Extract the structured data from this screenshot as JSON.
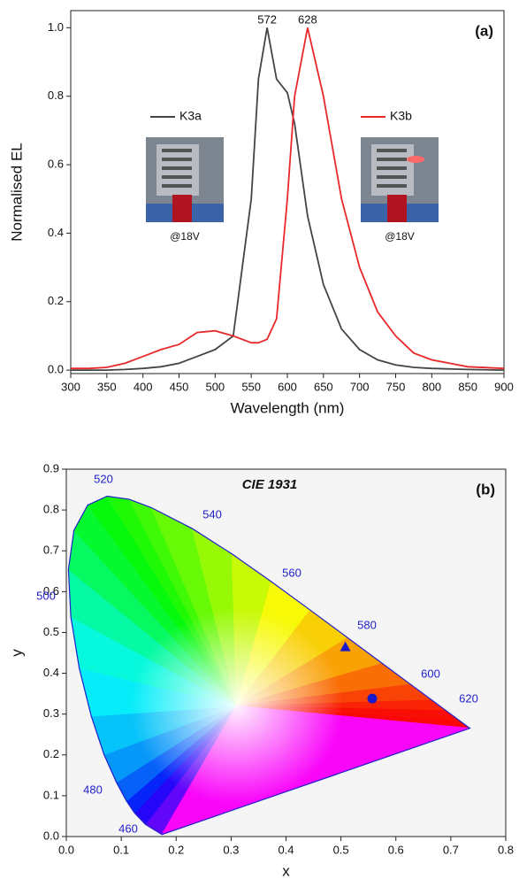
{
  "chart_data": [
    {
      "type": "line",
      "panel_label": "(a)",
      "xlabel": "Wavelength (nm)",
      "ylabel": "Normalised EL",
      "x": [
        300,
        325,
        350,
        375,
        400,
        425,
        450,
        475,
        500,
        525,
        550,
        560,
        572,
        585,
        600,
        610,
        628,
        650,
        675,
        700,
        725,
        750,
        775,
        800,
        850,
        900
      ],
      "series": [
        {
          "name": "K3a",
          "color": "#444444",
          "values": [
            0,
            0,
            0,
            0.002,
            0.005,
            0.01,
            0.02,
            0.04,
            0.06,
            0.1,
            0.5,
            0.85,
            1.0,
            0.85,
            0.81,
            0.72,
            0.45,
            0.25,
            0.12,
            0.06,
            0.03,
            0.015,
            0.008,
            0.005,
            0.002,
            0
          ]
        },
        {
          "name": "K3b",
          "color": "#e8282b",
          "values": [
            0.005,
            0.005,
            0.008,
            0.02,
            0.04,
            0.06,
            0.075,
            0.11,
            0.115,
            0.1,
            0.08,
            0.08,
            0.09,
            0.15,
            0.5,
            0.8,
            1.0,
            0.8,
            0.5,
            0.3,
            0.17,
            0.1,
            0.05,
            0.03,
            0.01,
            0.005
          ]
        }
      ],
      "peak_labels": [
        572,
        628
      ],
      "inset_captions": [
        "@18V",
        "@18V"
      ],
      "xlim": [
        300,
        900
      ],
      "xticks": [
        300,
        350,
        400,
        450,
        500,
        550,
        600,
        650,
        700,
        750,
        800,
        850,
        900
      ],
      "ylim": [
        -0.01,
        1.05
      ],
      "yticks": [
        {
          "value": 0,
          "label": "0.0"
        },
        {
          "value": 0.2,
          "label": "0.2"
        },
        {
          "value": 0.4,
          "label": "0.4"
        },
        {
          "value": 0.6,
          "label": "0.6"
        },
        {
          "value": 0.8,
          "label": "0.8"
        },
        {
          "value": 1,
          "label": "1.0"
        }
      ]
    },
    {
      "type": "scatter",
      "title": "CIE 1931",
      "panel_label": "(b)",
      "xlabel": "x",
      "ylabel": "y",
      "locus_labels": [
        520,
        540,
        560,
        580,
        600,
        620,
        500,
        480,
        460
      ],
      "series": [
        {
          "marker": "triangle",
          "color": "#1a1acc",
          "x": [
            0.508
          ],
          "values": [
            0.465
          ]
        },
        {
          "marker": "circle",
          "color": "#1a1acc",
          "x": [
            0.557
          ],
          "values": [
            0.338
          ]
        }
      ],
      "xlim": [
        0,
        0.8
      ],
      "xticks": [
        {
          "value": 0,
          "label": "0.0"
        },
        {
          "value": 0.1,
          "label": "0.1"
        },
        {
          "value": 0.2,
          "label": "0.2"
        },
        {
          "value": 0.3,
          "label": "0.3"
        },
        {
          "value": 0.4,
          "label": "0.4"
        },
        {
          "value": 0.5,
          "label": "0.5"
        },
        {
          "value": 0.6,
          "label": "0.6"
        },
        {
          "value": 0.7,
          "label": "0.7"
        },
        {
          "value": 0.8,
          "label": "0.8"
        }
      ],
      "ylim": [
        0,
        0.9
      ],
      "yticks": [
        {
          "value": 0,
          "label": "0.0"
        },
        {
          "value": 0.1,
          "label": "0.1"
        },
        {
          "value": 0.2,
          "label": "0.2"
        },
        {
          "value": 0.3,
          "label": "0.3"
        },
        {
          "value": 0.4,
          "label": "0.4"
        },
        {
          "value": 0.5,
          "label": "0.5"
        },
        {
          "value": 0.6,
          "label": "0.6"
        },
        {
          "value": 0.7,
          "label": "0.7"
        },
        {
          "value": 0.8,
          "label": "0.8"
        },
        {
          "value": 0.9,
          "label": "0.9"
        }
      ]
    }
  ]
}
